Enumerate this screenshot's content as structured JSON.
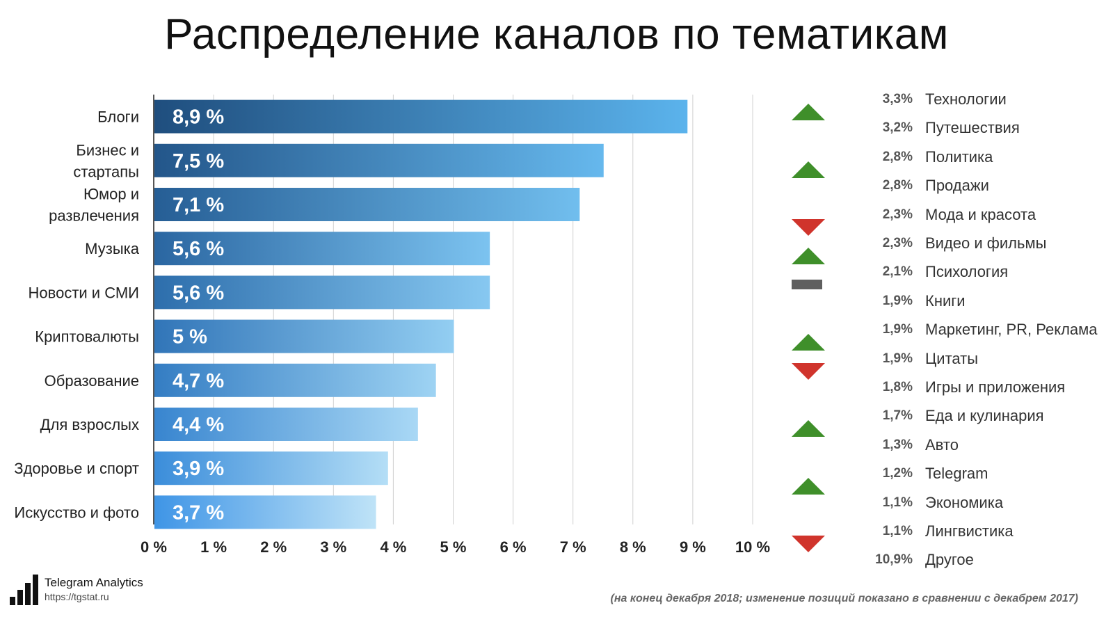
{
  "title": "Распределение каналов по тематикам",
  "chart_data": {
    "type": "bar",
    "orientation": "horizontal",
    "categories": [
      "Блоги",
      "Бизнес и стартапы",
      "Юмор и развлечения",
      "Музыка",
      "Новости и СМИ",
      "Криптовалюты",
      "Образование",
      "Для взрослых",
      "Здоровье и спорт",
      "Искусство и фото"
    ],
    "category_lines": [
      [
        "Блоги"
      ],
      [
        "Бизнес и",
        "стартапы"
      ],
      [
        "Юмор и",
        "развлечения"
      ],
      [
        "Музыка"
      ],
      [
        "Новости и СМИ"
      ],
      [
        "Криптовалюты"
      ],
      [
        "Образование"
      ],
      [
        "Для взрослых"
      ],
      [
        "Здоровье и спорт"
      ],
      [
        "Искусство и фото"
      ]
    ],
    "values": [
      8.9,
      7.5,
      7.1,
      5.6,
      5.6,
      5.0,
      4.7,
      4.4,
      3.9,
      3.7
    ],
    "value_labels": [
      "8,9 %",
      "7,5 %",
      "7,1 %",
      "5,6 %",
      "5,6 %",
      "5 %",
      "4,7 %",
      "4,4 %",
      "3,9 %",
      "3,7 %"
    ],
    "xlim": [
      0,
      10
    ],
    "xticks": [
      "0 %",
      "1 %",
      "2 %",
      "3 %",
      "4 %",
      "5 %",
      "6 %",
      "7 %",
      "8 %",
      "9 %",
      "10 %"
    ],
    "grid": "vertical",
    "bar_gradient_start": "#1f4e7e",
    "bar_gradient_end": "#5bb3ec",
    "bar_gradient_end_light": "#bfe3f7"
  },
  "trend_colors": {
    "up": "#3f8f2a",
    "down": "#d0342c",
    "flat": "#5f5f5f"
  },
  "other_topics": [
    {
      "pct": "3,3%",
      "name": "Технологии",
      "trend": "up"
    },
    {
      "pct": "3,2%",
      "name": "Путешествия",
      "trend": ""
    },
    {
      "pct": "2,8%",
      "name": "Политика",
      "trend": "up"
    },
    {
      "pct": "2,8%",
      "name": "Продажи",
      "trend": ""
    },
    {
      "pct": "2,3%",
      "name": "Мода и красота",
      "trend": "down"
    },
    {
      "pct": "2,3%",
      "name": "Видео и фильмы",
      "trend": "up"
    },
    {
      "pct": "2,1%",
      "name": "Психология",
      "trend": "flat"
    },
    {
      "pct": "1,9%",
      "name": "Книги",
      "trend": ""
    },
    {
      "pct": "1,9%",
      "name": "Маркетинг, PR, Реклама",
      "trend": "up"
    },
    {
      "pct": "1,9%",
      "name": "Цитаты",
      "trend": "down"
    },
    {
      "pct": "1,8%",
      "name": "Игры и приложения",
      "trend": ""
    },
    {
      "pct": "1,7%",
      "name": "Еда и кулинария",
      "trend": "up"
    },
    {
      "pct": "1,3%",
      "name": "Авто",
      "trend": ""
    },
    {
      "pct": "1,2%",
      "name": "Telegram",
      "trend": "up"
    },
    {
      "pct": "1,1%",
      "name": "Экономика",
      "trend": ""
    },
    {
      "pct": "1,1%",
      "name": "Лингвистика",
      "trend": "down"
    },
    {
      "pct": "10,9%",
      "name": "Другое",
      "trend": ""
    }
  ],
  "logo": {
    "title": "Telegram Analytics",
    "url": "https://tgstat.ru"
  },
  "footnote": "(на конец декабря 2018; изменение позиций показано в сравнении с декабрем 2017)"
}
